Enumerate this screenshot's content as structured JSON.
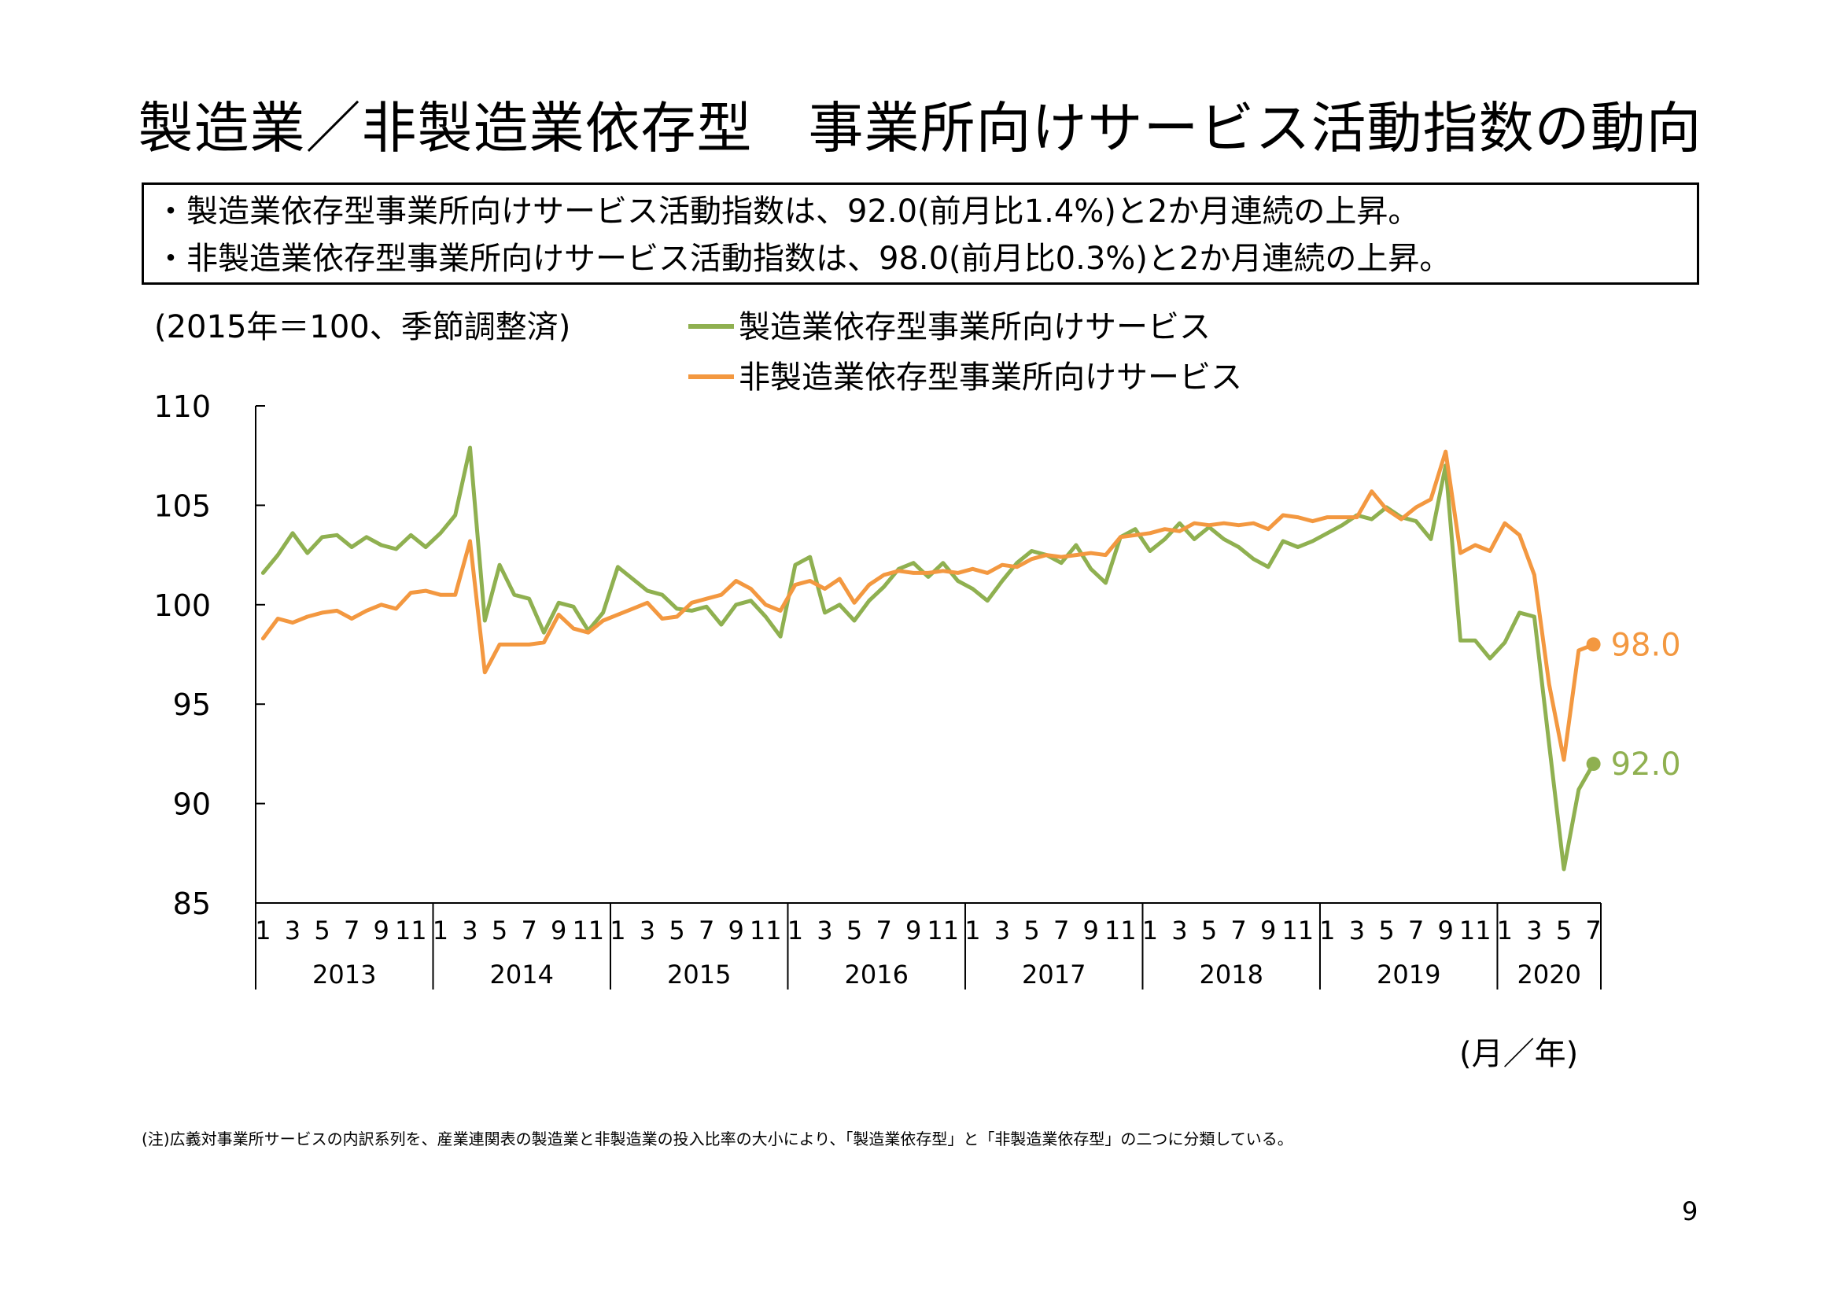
{
  "page": {
    "title": "製造業／非製造業依存型　事業所向けサービス活動指数の動向",
    "summary": [
      "・製造業依存型事業所向けサービス活動指数は、92.0(前月比1.4%)と2か月連続の上昇。",
      "・非製造業依存型事業所向けサービス活動指数は、98.0(前月比0.3%)と2か月連続の上昇。"
    ],
    "footnote": "(注)広義対事業所サービスの内訳系列を、産業連関表の製造業と非製造業の投入比率の大小により、「製造業依存型」と「非製造業依存型」の二つに分類している。",
    "page_number": "9"
  },
  "chart_data": {
    "type": "line",
    "unit_note": "(2015年＝100、季節調整済)",
    "x_unit_note": "(月／年)",
    "ylim": [
      85,
      110
    ],
    "yticks": [
      85,
      90,
      95,
      100,
      105,
      110
    ],
    "years": [
      "2013",
      "2014",
      "2015",
      "2016",
      "2017",
      "2018",
      "2019",
      "2020"
    ],
    "month_ticks": [
      "1",
      "3",
      "5",
      "7",
      "9",
      "11"
    ],
    "x_start": "2013-01",
    "n_months": 91,
    "grid": false,
    "legend_position": "top",
    "series": [
      {
        "name": "製造業依存型事業所向けサービス",
        "color": "#8FB050",
        "end_label": "92.0",
        "values": [
          101.6,
          102.5,
          103.6,
          102.6,
          103.4,
          103.5,
          102.9,
          103.4,
          103.0,
          102.8,
          103.5,
          102.9,
          103.6,
          104.5,
          107.9,
          99.2,
          102.0,
          100.5,
          100.3,
          98.6,
          100.1,
          99.9,
          98.7,
          99.6,
          101.9,
          101.3,
          100.7,
          100.5,
          99.8,
          99.7,
          99.9,
          99.0,
          100.0,
          100.2,
          99.4,
          98.4,
          102.0,
          102.4,
          99.6,
          100.0,
          99.2,
          100.2,
          100.9,
          101.8,
          102.1,
          101.4,
          102.1,
          101.2,
          100.8,
          100.2,
          101.2,
          102.1,
          102.7,
          102.5,
          102.1,
          103.0,
          101.8,
          101.1,
          103.4,
          103.8,
          102.7,
          103.3,
          104.1,
          103.3,
          103.9,
          103.3,
          102.9,
          102.3,
          101.9,
          103.2,
          102.9,
          103.2,
          103.6,
          104.0,
          104.5,
          104.3,
          104.9,
          104.4,
          104.2,
          103.3,
          107.0,
          98.2,
          98.2,
          97.3,
          98.1,
          99.6,
          99.4,
          93.0,
          86.7,
          90.7,
          92.0
        ]
      },
      {
        "name": "非製造業依存型事業所向けサービス",
        "color": "#F39840",
        "end_label": "98.0",
        "values": [
          98.3,
          99.3,
          99.1,
          99.4,
          99.6,
          99.7,
          99.3,
          99.7,
          100.0,
          99.8,
          100.6,
          100.7,
          100.5,
          100.5,
          103.2,
          96.6,
          98.0,
          98.0,
          98.0,
          98.1,
          99.5,
          98.8,
          98.6,
          99.2,
          99.5,
          99.8,
          100.1,
          99.3,
          99.4,
          100.1,
          100.3,
          100.5,
          101.2,
          100.8,
          100.0,
          99.7,
          101.0,
          101.2,
          100.8,
          101.3,
          100.1,
          101.0,
          101.5,
          101.7,
          101.6,
          101.6,
          101.7,
          101.6,
          101.8,
          101.6,
          102.0,
          101.9,
          102.3,
          102.5,
          102.4,
          102.5,
          102.6,
          102.5,
          103.4,
          103.5,
          103.6,
          103.8,
          103.7,
          104.1,
          104.0,
          104.1,
          104.0,
          104.1,
          103.8,
          104.5,
          104.4,
          104.2,
          104.4,
          104.4,
          104.4,
          105.7,
          104.8,
          104.3,
          104.9,
          105.3,
          107.7,
          102.6,
          103.0,
          102.7,
          104.1,
          103.5,
          101.5,
          96.0,
          92.2,
          97.7,
          98.0
        ]
      }
    ]
  }
}
